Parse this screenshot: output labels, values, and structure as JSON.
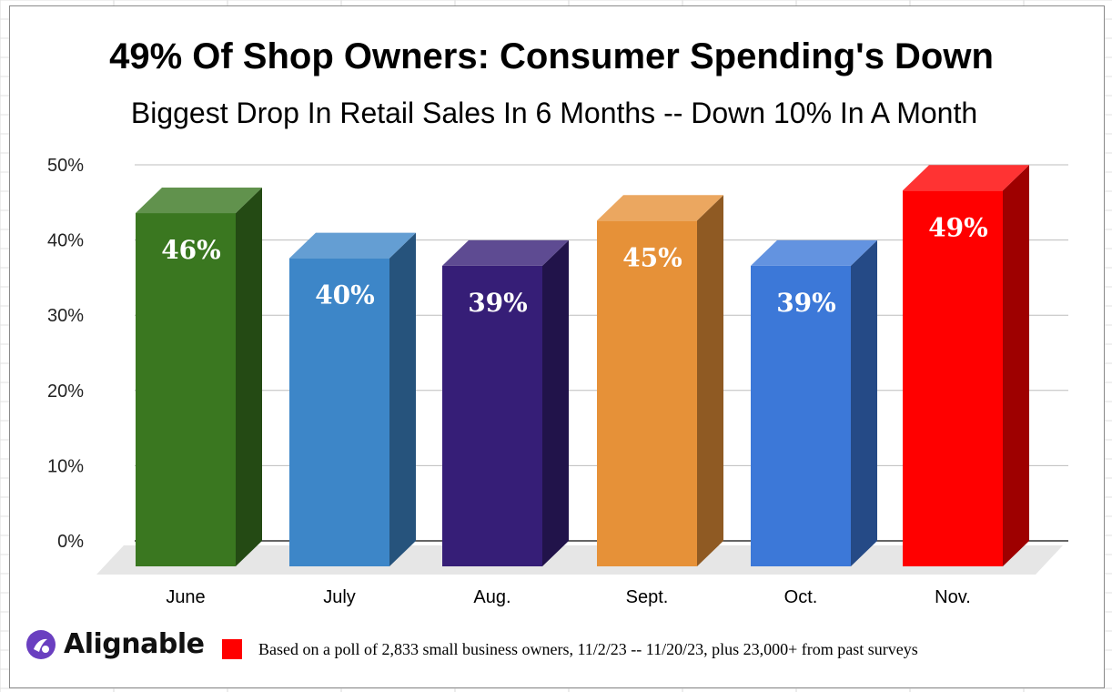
{
  "chart_data": {
    "type": "bar",
    "title": "49% Of Shop Owners: Consumer Spending's Down",
    "subtitle": "Biggest Drop In Retail Sales In 6 Months -- Down 10% In A Month",
    "categories": [
      "June",
      "July",
      "Aug.",
      "Sept.",
      "Oct.",
      "Nov."
    ],
    "values": [
      46,
      40,
      39,
      45,
      39,
      49
    ],
    "data_labels": [
      "46%",
      "40%",
      "39%",
      "45%",
      "39%",
      "49%"
    ],
    "bar_colors": [
      "#3a7720",
      "#3d86c8",
      "#361e77",
      "#e69138",
      "#3c78d8",
      "#ff0000"
    ],
    "y_ticks": [
      "0%",
      "10%",
      "20%",
      "30%",
      "40%",
      "50%"
    ],
    "ylim": [
      0,
      50
    ],
    "grid": true,
    "style": "3d-columns"
  },
  "footer": {
    "brand": "Alignable",
    "note": "Based on a poll of 2,833 small business owners, 11/2/23 -- 11/20/23, plus 23,000+ from past surveys",
    "note_color": "#ff0000"
  }
}
